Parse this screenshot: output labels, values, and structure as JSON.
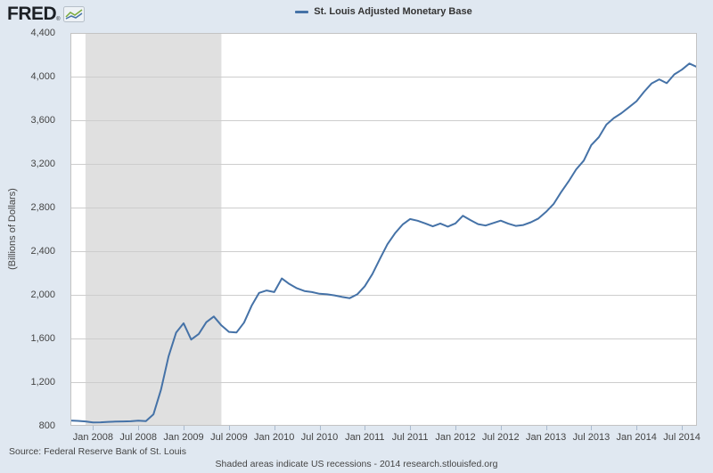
{
  "page": {
    "background": "#e0e8f1"
  },
  "logo": {
    "text": "FRED",
    "registered_mark": "®",
    "icon": "fred-sparkline-icon"
  },
  "legend": {
    "series_label": "St. Louis Adjusted Monetary Base",
    "line_color": "#4572a7"
  },
  "y_axis": {
    "title": "(Billions of Dollars)",
    "tick_labels": [
      "800",
      "1,200",
      "1,600",
      "2,000",
      "2,400",
      "2,800",
      "3,200",
      "3,600",
      "4,000",
      "4,400"
    ],
    "min": 800,
    "max": 4400
  },
  "x_axis": {
    "tick_labels": [
      "Jan 2008",
      "Jul 2008",
      "Jan 2009",
      "Jul 2009",
      "Jan 2010",
      "Jul 2010",
      "Jan 2011",
      "Jul 2011",
      "Jan 2012",
      "Jul 2012",
      "Jan 2013",
      "Jul 2013",
      "Jan 2014",
      "Jul 2014"
    ],
    "first_tick_month_index": 3,
    "tick_interval_months": 6
  },
  "footer": {
    "source": "Source: Federal Reserve Bank of St. Louis",
    "note": "Shaded areas indicate US recessions - 2014 research.stlouisfed.org"
  },
  "chart_data": {
    "type": "line",
    "title": "St. Louis Adjusted Monetary Base",
    "ylabel": "(Billions of Dollars)",
    "ylim": [
      800,
      4400
    ],
    "grid": "horizontal-only",
    "legend_position": "top-center",
    "x_start": "2007-10",
    "x_end": "2014-09",
    "frequency": "monthly",
    "recession_band": {
      "start": "2007-12",
      "end": "2009-06",
      "start_index": 2,
      "end_index": 20,
      "color": "#e0e0e0"
    },
    "series": [
      {
        "name": "St. Louis Adjusted Monetary Base",
        "color": "#4572a7",
        "values": [
          848,
          845,
          840,
          831,
          832,
          836,
          838,
          840,
          842,
          847,
          843,
          905,
          1130,
          1435,
          1654,
          1740,
          1590,
          1642,
          1749,
          1802,
          1720,
          1660,
          1655,
          1745,
          1900,
          2018,
          2040,
          2025,
          2150,
          2100,
          2060,
          2035,
          2025,
          2010,
          2005,
          1995,
          1980,
          1970,
          2005,
          2079,
          2190,
          2330,
          2464,
          2564,
          2644,
          2695,
          2679,
          2655,
          2628,
          2654,
          2625,
          2655,
          2725,
          2685,
          2648,
          2635,
          2658,
          2680,
          2652,
          2632,
          2640,
          2665,
          2700,
          2760,
          2832,
          2940,
          3040,
          3150,
          3230,
          3372,
          3445,
          3560,
          3620,
          3665,
          3720,
          3775,
          3861,
          3938,
          3975,
          3940,
          4020,
          4064,
          4120,
          4088
        ]
      }
    ]
  }
}
